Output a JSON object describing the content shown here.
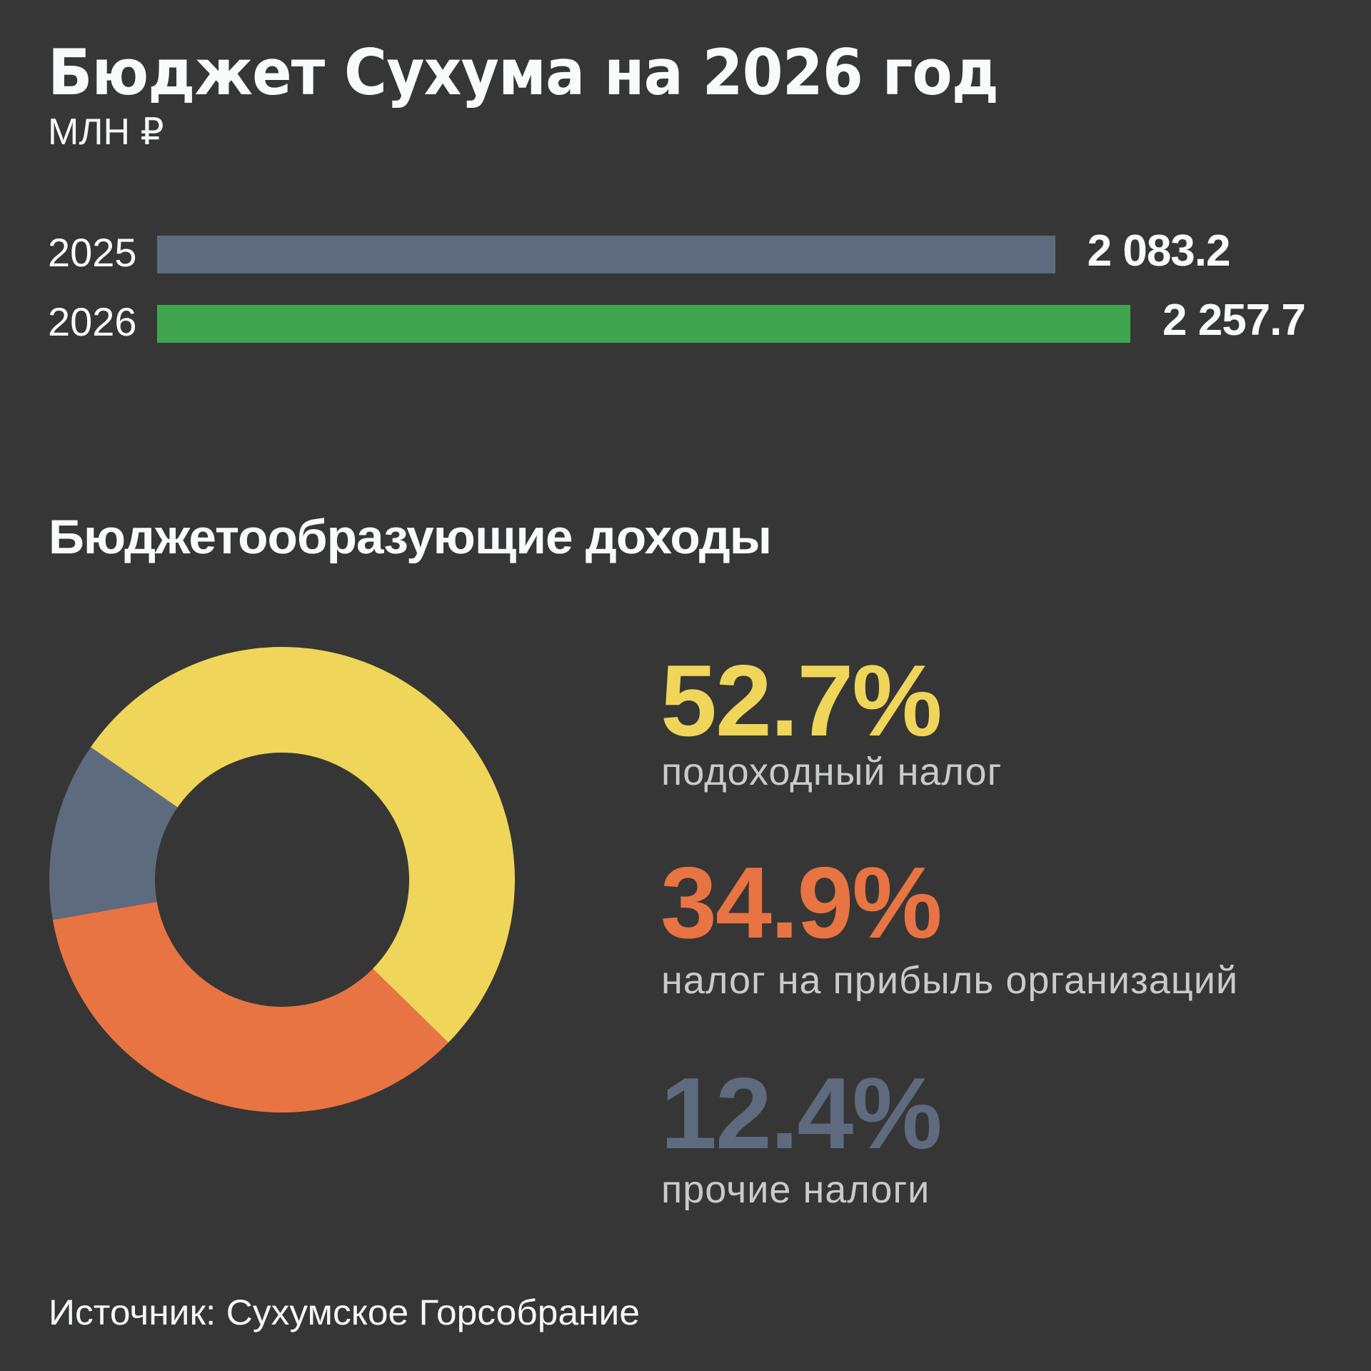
{
  "header": {
    "title": "Бюджет Сухума на 2026 год",
    "unit": "МЛН ₽"
  },
  "budget_bars": [
    {
      "year": "2025",
      "value_label": "2 083.2",
      "value": 2083.2,
      "color": "#5e6a7d"
    },
    {
      "year": "2026",
      "value_label": "2 257.7",
      "value": 2257.7,
      "color": "#41a550"
    }
  ],
  "revenue_section": {
    "title": "Бюджетообразующие доходы",
    "items": [
      {
        "percent_label": "52.7%",
        "percent": 52.7,
        "label": "подоходный налог",
        "color": "#efd55a"
      },
      {
        "percent_label": "34.9%",
        "percent": 34.9,
        "label": "налог на прибыль организаций",
        "color": "#e87443"
      },
      {
        "percent_label": "12.4%",
        "percent": 12.4,
        "label": "прочие налоги",
        "color": "#5e6a7d"
      }
    ]
  },
  "footer": {
    "source": "Источник: Сухумское Горсобрание"
  },
  "chart_data": [
    {
      "type": "bar",
      "orientation": "horizontal",
      "title": "Бюджет Сухума на 2026 год",
      "ylabel": "МЛН ₽",
      "categories": [
        "2025",
        "2026"
      ],
      "values": [
        2083.2,
        2257.7
      ],
      "colors": [
        "#5e6a7d",
        "#41a550"
      ],
      "grid": false
    },
    {
      "type": "pie",
      "variant": "donut",
      "title": "Бюджетообразующие доходы",
      "categories": [
        "подоходный налог",
        "налог на прибыль организаций",
        "прочие налоги"
      ],
      "values": [
        52.7,
        34.9,
        12.4
      ],
      "colors": [
        "#efd55a",
        "#e87443",
        "#5e6a7d"
      ],
      "legend_position": "right"
    }
  ]
}
